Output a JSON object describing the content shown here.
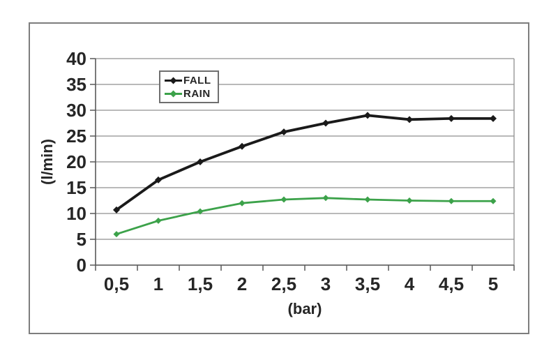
{
  "chart_data": {
    "type": "line",
    "x": [
      0.5,
      1,
      1.5,
      2,
      2.5,
      3,
      3.5,
      4,
      4.5,
      5
    ],
    "x_tick_labels": [
      "0,5",
      "1",
      "1,5",
      "2",
      "2,5",
      "3",
      "3,5",
      "4",
      "4,5",
      "5"
    ],
    "xlabel": "(bar)",
    "ylabel": "(l/min)",
    "ylim": [
      0,
      40
    ],
    "y_tick_step": 5,
    "y_tick_labels": [
      "0",
      "5",
      "10",
      "15",
      "20",
      "25",
      "30",
      "35",
      "40"
    ],
    "grid": true,
    "legend_position": "inside-top-center",
    "series": [
      {
        "name": "FALL",
        "color": "#1a1a1a",
        "marker": "diamond",
        "values": [
          10.7,
          16.5,
          20.0,
          23.0,
          25.8,
          27.5,
          29.0,
          28.2,
          28.4,
          28.4
        ]
      },
      {
        "name": "RAIN",
        "color": "#3ca24a",
        "marker": "diamond",
        "values": [
          6.0,
          8.6,
          10.4,
          12.0,
          12.7,
          13.0,
          12.7,
          12.5,
          12.4,
          12.4
        ]
      }
    ]
  },
  "colors": {
    "background": "#ffffff",
    "frame_border": "#7d7d7d",
    "gridline": "#8f8f8f",
    "axis": "#595959",
    "text": "#262626",
    "legend_border": "#6f6f6f"
  }
}
